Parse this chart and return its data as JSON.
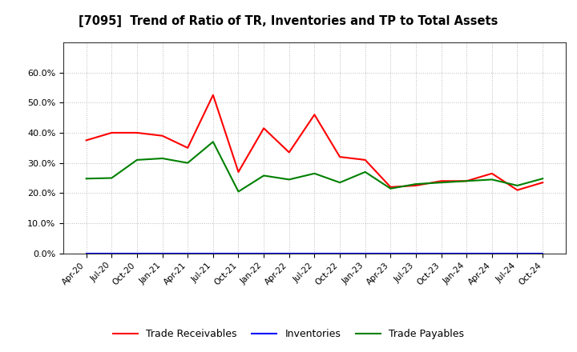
{
  "title": "[7095]  Trend of Ratio of TR, Inventories and TP to Total Assets",
  "x_labels": [
    "Apr-20",
    "Jul-20",
    "Oct-20",
    "Jan-21",
    "Apr-21",
    "Jul-21",
    "Oct-21",
    "Jan-22",
    "Apr-22",
    "Jul-22",
    "Oct-22",
    "Jan-23",
    "Apr-23",
    "Jul-23",
    "Oct-23",
    "Jan-24",
    "Apr-24",
    "Jul-24",
    "Oct-24"
  ],
  "trade_receivables": [
    0.375,
    0.4,
    0.4,
    0.39,
    0.35,
    0.525,
    0.27,
    0.415,
    0.335,
    0.46,
    0.32,
    0.31,
    0.22,
    0.225,
    0.24,
    0.24,
    0.265,
    0.21,
    0.235
  ],
  "inventories": [
    0.0,
    0.0,
    0.0,
    0.0,
    0.0,
    0.0,
    0.0,
    0.0,
    0.0,
    0.0,
    0.0,
    0.0,
    0.0,
    0.0,
    0.0,
    0.0,
    0.0,
    0.0,
    0.0
  ],
  "trade_payables": [
    0.248,
    0.25,
    0.31,
    0.315,
    0.3,
    0.37,
    0.205,
    0.258,
    0.245,
    0.265,
    0.235,
    0.27,
    0.215,
    0.23,
    0.235,
    0.24,
    0.245,
    0.225,
    0.248
  ],
  "tr_color": "#ff0000",
  "inv_color": "#0000ff",
  "tp_color": "#008000",
  "ylim": [
    0.0,
    0.7
  ],
  "yticks": [
    0.0,
    0.1,
    0.2,
    0.3,
    0.4,
    0.5,
    0.6
  ],
  "grid_color": "#aaaaaa",
  "background_color": "#ffffff",
  "legend_labels": [
    "Trade Receivables",
    "Inventories",
    "Trade Payables"
  ]
}
